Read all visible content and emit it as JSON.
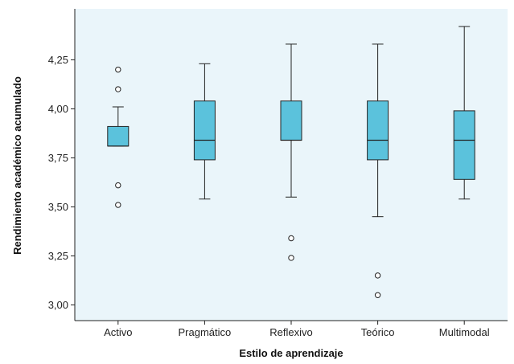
{
  "chart_data": {
    "type": "boxplot",
    "xlabel": "Estilo de aprendizaje",
    "ylabel": "Rendimiento académico acumulado",
    "ylim": [
      2.92,
      4.51
    ],
    "yticks": [
      3.0,
      3.25,
      3.5,
      3.75,
      4.0,
      4.25
    ],
    "ytick_labels": [
      "3,00",
      "3,25",
      "3,50",
      "3,75",
      "4,00",
      "4,25"
    ],
    "grid": false,
    "colors": {
      "box_fill": "#5bc2dc",
      "plot_bg": "#eaf5fa",
      "line": "#222222"
    },
    "categories": [
      "Activo",
      "Pragmático",
      "Reflexivo",
      "Teórico",
      "Multimodal"
    ],
    "boxes": [
      {
        "category": "Activo",
        "whisker_low": 3.81,
        "q1": 3.81,
        "median": 3.81,
        "q3": 3.91,
        "whisker_high": 4.01,
        "outliers": [
          4.2,
          4.1,
          3.61,
          3.51
        ]
      },
      {
        "category": "Pragmático",
        "whisker_low": 3.54,
        "q1": 3.74,
        "median": 3.84,
        "q3": 4.04,
        "whisker_high": 4.23,
        "outliers": []
      },
      {
        "category": "Reflexivo",
        "whisker_low": 3.55,
        "q1": 3.84,
        "median": 3.84,
        "q3": 4.04,
        "whisker_high": 4.33,
        "outliers": [
          3.34,
          3.24
        ]
      },
      {
        "category": "Teórico",
        "whisker_low": 3.45,
        "q1": 3.74,
        "median": 3.84,
        "q3": 4.04,
        "whisker_high": 4.33,
        "outliers": [
          3.15,
          3.05
        ]
      },
      {
        "category": "Multimodal",
        "whisker_low": 3.54,
        "q1": 3.64,
        "median": 3.84,
        "q3": 3.99,
        "whisker_high": 4.42,
        "outliers": []
      }
    ]
  }
}
